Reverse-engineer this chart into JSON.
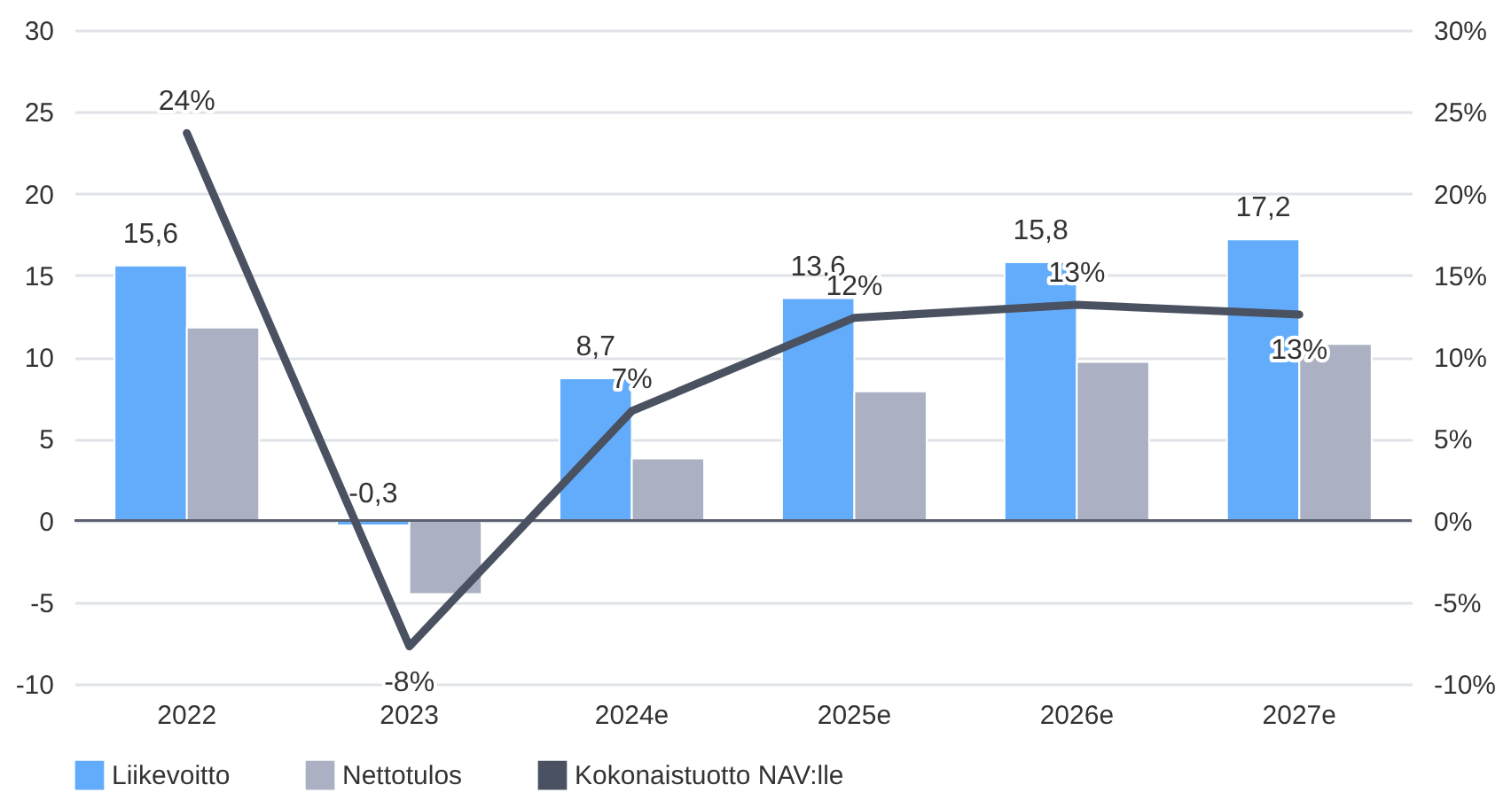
{
  "chart_data": {
    "type": "bar",
    "categories": [
      "2022",
      "2023",
      "2024e",
      "2025e",
      "2026e",
      "2027e"
    ],
    "series": [
      {
        "name": "Liikevoitto",
        "color": "#62acfb",
        "values": [
          15.6,
          -0.3,
          8.7,
          13.6,
          15.8,
          17.2
        ],
        "value_labels": [
          "15,6",
          "-0,3",
          "8,7",
          "13,6",
          "15,8",
          "17,2"
        ]
      },
      {
        "name": "Nettotulos",
        "color": "#abb1c2",
        "values": [
          11.8,
          -4.5,
          3.8,
          7.9,
          9.7,
          10.8
        ]
      },
      {
        "name": "Kokonaistuotto NAV:lle",
        "type": "line",
        "axis": "y2",
        "color": "#4a5261",
        "values": [
          23.7,
          -7.7,
          6.7,
          12.4,
          13.2,
          12.6
        ],
        "value_labels": [
          "24%",
          "-8%",
          "7%",
          "12%",
          "13%",
          "13%"
        ]
      }
    ],
    "ylim": [
      -10,
      30
    ],
    "yticks": [
      -10,
      -5,
      0,
      5,
      10,
      15,
      20,
      25,
      30
    ],
    "y2lim": [
      -10,
      30
    ],
    "y2ticks": [
      {
        "value": -10,
        "label": "-10%"
      },
      {
        "value": -5,
        "label": "-5%"
      },
      {
        "value": 0,
        "label": "0%"
      },
      {
        "value": 5,
        "label": "5%"
      },
      {
        "value": 10,
        "label": "10%"
      },
      {
        "value": 15,
        "label": "15%"
      },
      {
        "value": 20,
        "label": "20%"
      },
      {
        "value": 25,
        "label": "25%"
      },
      {
        "value": 30,
        "label": "30%"
      }
    ],
    "grid": "y",
    "legend": "bottom"
  }
}
